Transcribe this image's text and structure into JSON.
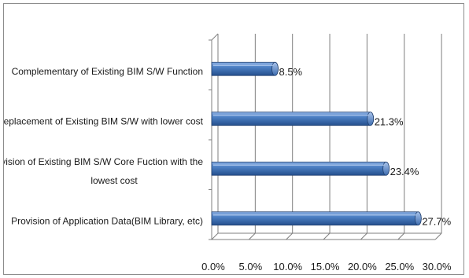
{
  "chart_data": {
    "type": "bar",
    "orientation": "horizontal",
    "style": "3d-cylinder",
    "categories": [
      "Complementary of Existing BIM S/W Function",
      "Replacement of Existing BIM S/W with lower cost",
      "Provision of Existing BIM S/W Core Fuction with the lowest cost",
      "Provision of Application Data(BIM Library, etc)"
    ],
    "category_lines": [
      [
        "Complementary of Existing BIM S/W Function"
      ],
      [
        "Replacement of Existing BIM S/W with lower cost"
      ],
      [
        "Provision of Existing BIM S/W Core Fuction with the",
        "lowest cost"
      ],
      [
        "Provision of Application Data(BIM Library, etc)"
      ]
    ],
    "values": [
      8.5,
      21.3,
      23.4,
      27.7
    ],
    "data_labels": [
      "8.5%",
      "21.3%",
      "23.4%",
      "27.7%"
    ],
    "xlim": [
      0,
      30
    ],
    "x_ticks": [
      "0.0%",
      "5.0%",
      "10.0%",
      "15.0%",
      "20.0%",
      "25.0%",
      "30.0%"
    ],
    "title": "",
    "xlabel": "",
    "ylabel": "",
    "grid": true,
    "legend": "none",
    "bar_color": "#4a7ebb"
  }
}
